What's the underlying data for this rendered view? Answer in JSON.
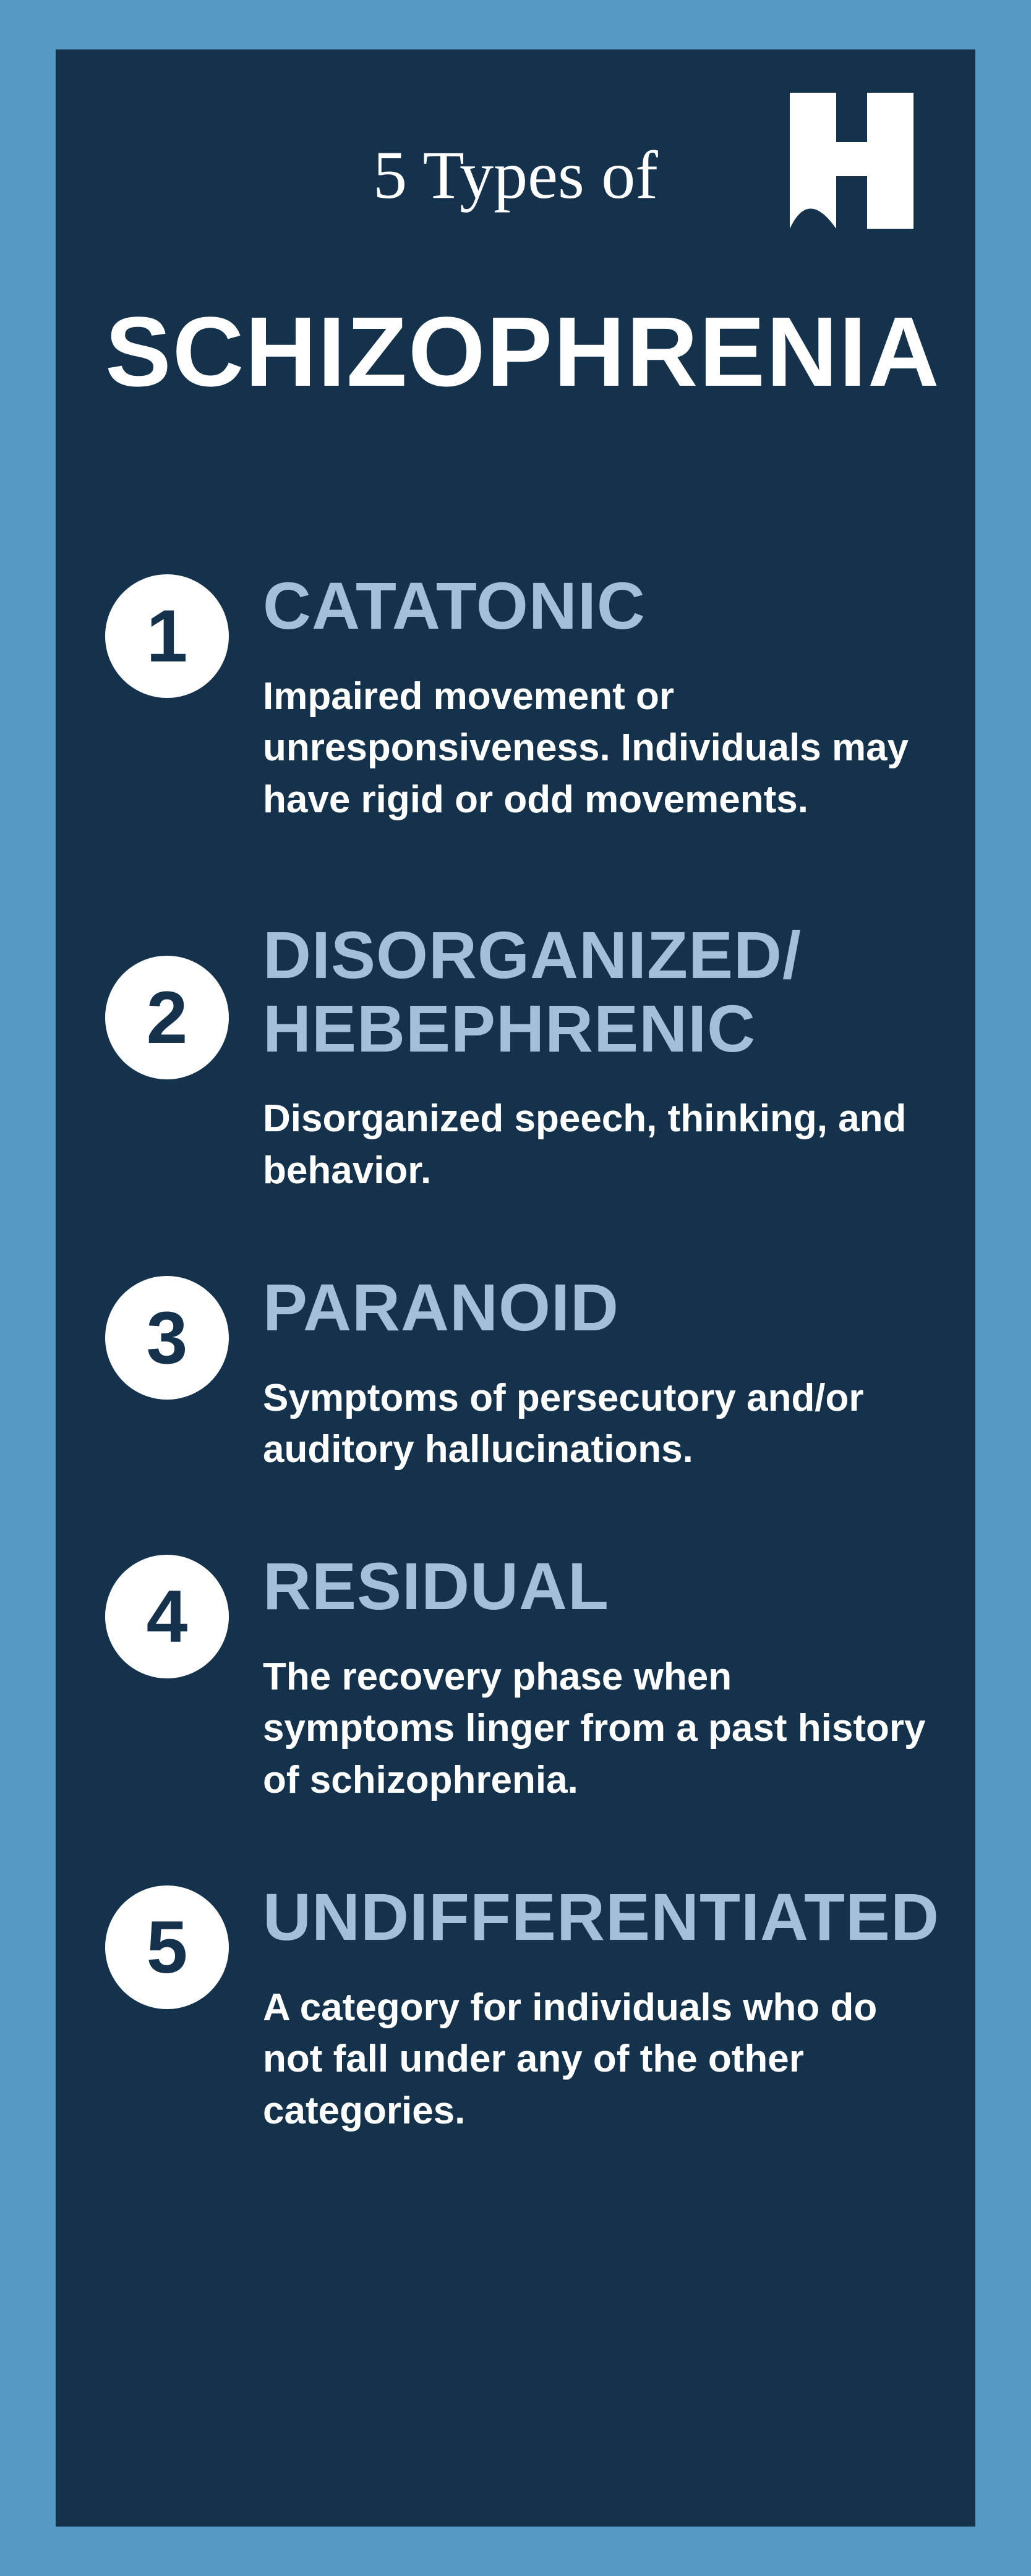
{
  "colors": {
    "outer_bg": "#5699c4",
    "panel_bg": "#14324c",
    "text_white": "#ffffff",
    "heading_accent": "#a2c0d9",
    "badge_bg": "#ffffff",
    "badge_text": "#14324c"
  },
  "header": {
    "supertitle": "5 Types of",
    "title": "SCHIZOPHRENIA",
    "logo_letter": "H"
  },
  "items": [
    {
      "number": "1",
      "heading": "CATATONIC",
      "body": "Impaired movement or unresponsiveness. Individuals may have rigid or odd movements."
    },
    {
      "number": "2",
      "heading": "DISORGANIZED/\nHEBEPHRENIC",
      "body": "Disorganized speech, thinking, and behavior."
    },
    {
      "number": "3",
      "heading": "PARANOID",
      "body": "Symptoms of persecutory and/or auditory hallucinations."
    },
    {
      "number": "4",
      "heading": "RESIDUAL",
      "body": "The recovery phase when symptoms linger from a past history of schizophrenia."
    },
    {
      "number": "5",
      "heading": "UNDIFFERENTIATED",
      "body": "A category for individuals who do not fall under any of the other categories."
    }
  ]
}
